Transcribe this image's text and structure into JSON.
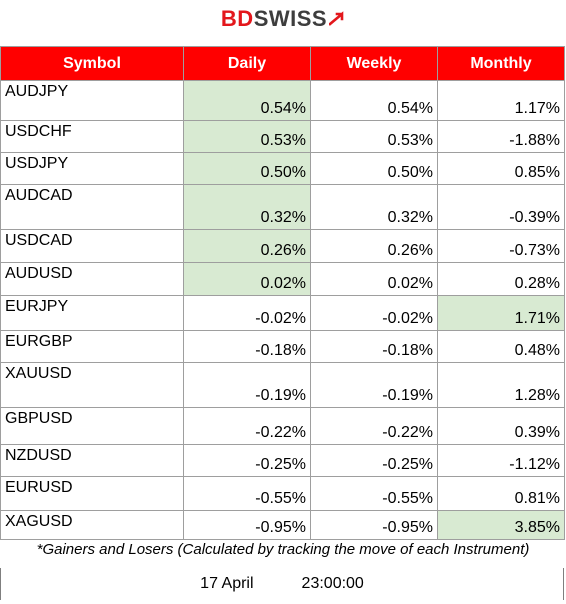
{
  "brand": {
    "part1": "BD",
    "part2": "SWISS"
  },
  "headers": {
    "symbol": "Symbol",
    "daily": "Daily",
    "weekly": "Weekly",
    "monthly": "Monthly"
  },
  "rows": [
    {
      "symbol": "AUDJPY",
      "daily": "0.54%",
      "weekly": "0.54%",
      "monthly": "1.17%"
    },
    {
      "symbol": "USDCHF",
      "daily": "0.53%",
      "weekly": "0.53%",
      "monthly": "-1.88%"
    },
    {
      "symbol": "USDJPY",
      "daily": "0.50%",
      "weekly": "0.50%",
      "monthly": "0.85%"
    },
    {
      "symbol": "AUDCAD",
      "daily": "0.32%",
      "weekly": "0.32%",
      "monthly": "-0.39%"
    },
    {
      "symbol": "USDCAD",
      "daily": "0.26%",
      "weekly": "0.26%",
      "monthly": "-0.73%"
    },
    {
      "symbol": "AUDUSD",
      "daily": "0.02%",
      "weekly": "0.02%",
      "monthly": "0.28%"
    },
    {
      "symbol": "EURJPY",
      "daily": "-0.02%",
      "weekly": "-0.02%",
      "monthly": "1.71%"
    },
    {
      "symbol": "EURGBP",
      "daily": "-0.18%",
      "weekly": "-0.18%",
      "monthly": "0.48%"
    },
    {
      "symbol": "XAUUSD",
      "daily": "-0.19%",
      "weekly": "-0.19%",
      "monthly": "1.28%"
    },
    {
      "symbol": "GBPUSD",
      "daily": "-0.22%",
      "weekly": "-0.22%",
      "monthly": "0.39%"
    },
    {
      "symbol": "NZDUSD",
      "daily": "-0.25%",
      "weekly": "-0.25%",
      "monthly": "-1.12%"
    },
    {
      "symbol": "EURUSD",
      "daily": "-0.55%",
      "weekly": "-0.55%",
      "monthly": "0.81%"
    },
    {
      "symbol": "XAGUSD",
      "daily": "-0.95%",
      "weekly": "-0.95%",
      "monthly": "3.85%"
    }
  ],
  "highlight_color": "#d8ead2",
  "header_color": "#ff0000",
  "note": "*Gainers and Losers (Calculated by tracking the move of each Instrument)",
  "timestamp": {
    "date": "17 April",
    "time": "23:00:00"
  }
}
